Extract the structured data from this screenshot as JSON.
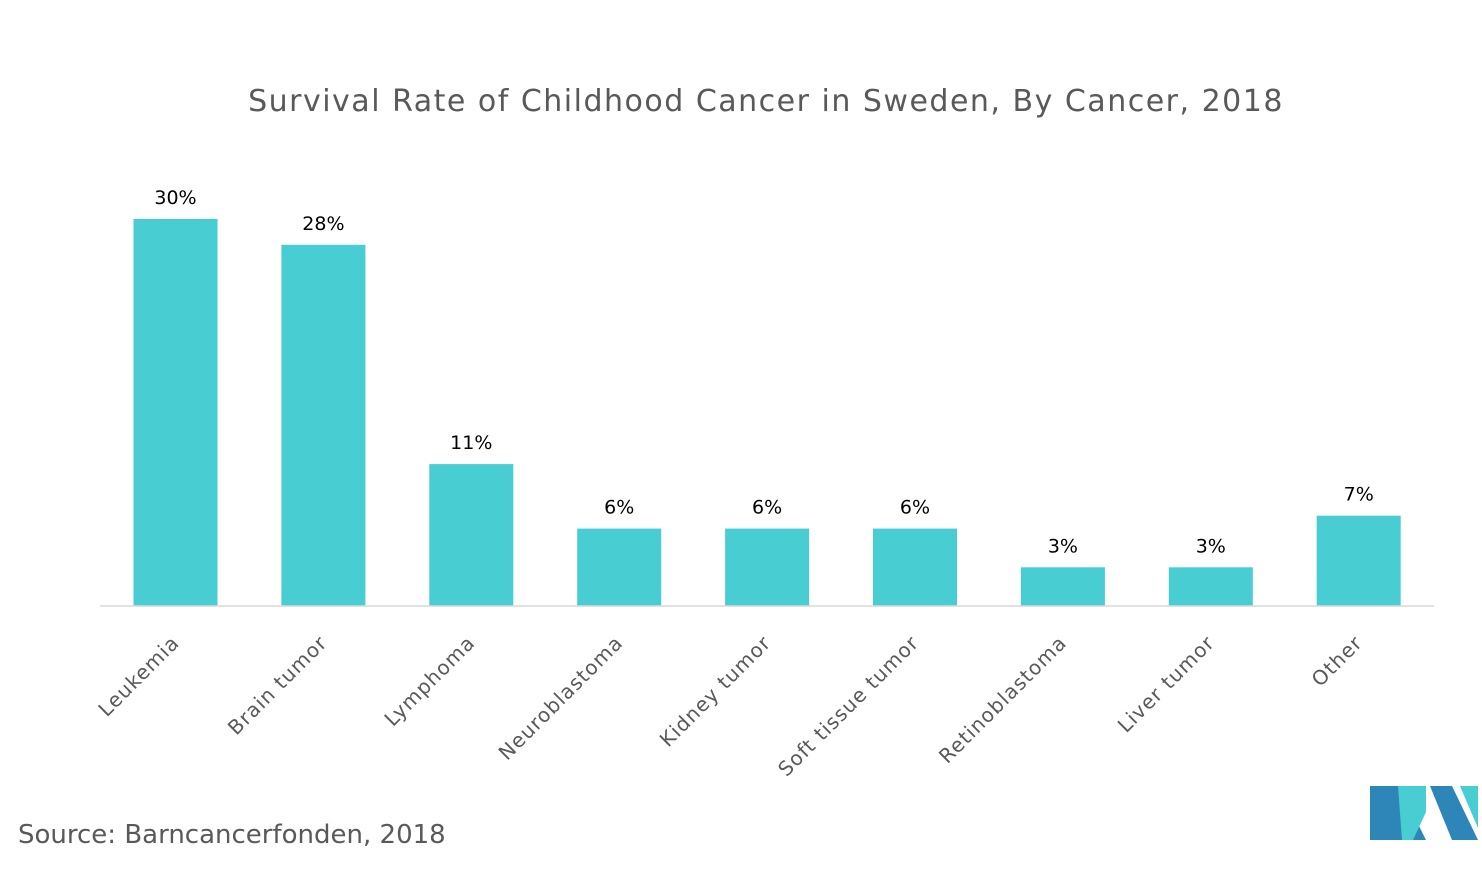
{
  "chart_data": {
    "type": "bar",
    "title": "Survival Rate of Childhood Cancer in Sweden, By Cancer, 2018",
    "xlabel": "",
    "ylabel": "",
    "ylim": [
      0,
      30
    ],
    "grid": false,
    "legend": "none",
    "value_suffix": "%",
    "categories": [
      "Leukemia",
      "Brain tumor",
      "Lymphoma",
      "Neuroblastoma",
      "Kidney tumor",
      "Soft tissue tumor",
      "Retinoblastoma",
      "Liver tumor",
      "Other"
    ],
    "values": [
      30,
      28,
      11,
      6,
      6,
      6,
      3,
      3,
      7
    ],
    "data_labels": [
      "30%",
      "28%",
      "11%",
      "6%",
      "6%",
      "6%",
      "3%",
      "3%",
      "7%"
    ]
  },
  "source": "Source: Barncancerfonden, 2018",
  "colors": {
    "bar": "#48CDD2",
    "axis": "#D9D9D9",
    "title": "#595959",
    "logo_dark": "#2E86B8",
    "logo_light": "#48CDD2"
  }
}
